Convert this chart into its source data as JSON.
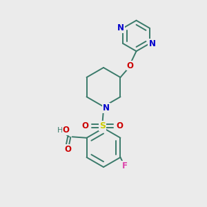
{
  "background_color": "#ebebeb",
  "bond_color": "#3a7a6a",
  "nitrogen_color": "#0000cc",
  "oxygen_color": "#cc0000",
  "sulfur_color": "#cccc00",
  "fluorine_color": "#dd44aa",
  "text_color": "#2d2d2d",
  "line_width": 1.4,
  "figsize": [
    3.0,
    3.0
  ],
  "dpi": 100,
  "xlim": [
    0,
    10
  ],
  "ylim": [
    0,
    10
  ]
}
